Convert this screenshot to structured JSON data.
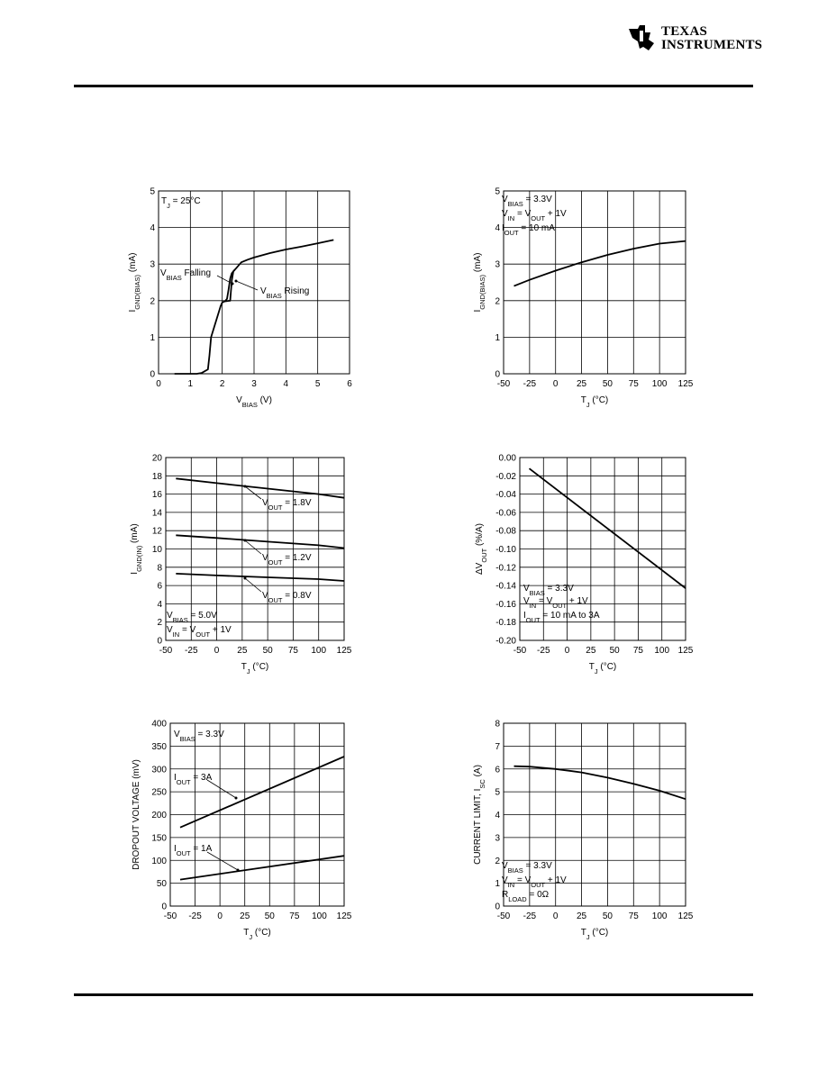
{
  "brand": {
    "line1": "Texas",
    "line2": "Instruments"
  },
  "chart_data": [
    {
      "type": "line",
      "xlabel": "V_BIAS (V)",
      "ylabel": "I_GND(BIAS) (mA)",
      "xlim": [
        0,
        6
      ],
      "ylim": [
        0,
        5
      ],
      "xticks": [
        0,
        1,
        2,
        3,
        4,
        5,
        6
      ],
      "yticks": [
        0,
        1,
        2,
        3,
        4,
        5
      ],
      "grid": true,
      "annotations": [
        "T_J = 25°C",
        "V_BIAS Falling",
        "V_BIAS Rising"
      ],
      "series": [
        {
          "x": [
            0.5,
            1.2,
            1.35,
            1.55,
            1.6,
            1.65,
            1.95,
            2.0,
            2.08,
            2.25,
            2.3,
            2.35,
            2.45,
            2.6,
            2.8,
            3.0,
            3.5,
            4.0,
            4.5,
            5.0,
            5.5
          ],
          "y": [
            0.0,
            0.0,
            0.02,
            0.12,
            0.5,
            1.0,
            1.85,
            1.95,
            1.98,
            2.0,
            2.55,
            2.8,
            2.9,
            3.05,
            3.12,
            3.18,
            3.3,
            3.4,
            3.48,
            3.57,
            3.66
          ]
        },
        {
          "x": [
            2.1,
            2.15,
            2.2,
            2.25,
            2.3,
            2.35,
            2.4
          ],
          "y": [
            2.0,
            2.05,
            2.3,
            2.6,
            2.75,
            2.8,
            2.85
          ]
        }
      ]
    },
    {
      "type": "line",
      "xlabel": "T_J (°C)",
      "ylabel": "I_GND(BIAS) (mA)",
      "xlim": [
        -50,
        125
      ],
      "ylim": [
        0,
        5
      ],
      "xticks": [
        -50,
        -25,
        0,
        25,
        50,
        75,
        100,
        125
      ],
      "yticks": [
        0,
        1,
        2,
        3,
        4,
        5
      ],
      "grid": true,
      "annotations": [
        "V_BIAS = 3.3V",
        "V_IN = V_OUT + 1V",
        "I_OUT = 10 mA"
      ],
      "series": [
        {
          "x": [
            -40,
            -25,
            0,
            25,
            50,
            75,
            100,
            125
          ],
          "y": [
            2.4,
            2.57,
            2.82,
            3.05,
            3.25,
            3.42,
            3.56,
            3.63
          ]
        }
      ]
    },
    {
      "type": "line",
      "xlabel": "T_J (°C)",
      "ylabel": "I_GND(IN) (mA)",
      "xlim": [
        -50,
        125
      ],
      "ylim": [
        0,
        20
      ],
      "xticks": [
        -50,
        -25,
        0,
        25,
        50,
        75,
        100,
        125
      ],
      "yticks": [
        0,
        2,
        4,
        6,
        8,
        10,
        12,
        14,
        16,
        18,
        20
      ],
      "grid": true,
      "annotations": [
        "V_BIAS = 5.0V",
        "V_IN = V_OUT + 1V"
      ],
      "series": [
        {
          "name": "V_OUT = 1.8V",
          "x": [
            -40,
            0,
            50,
            100,
            125
          ],
          "y": [
            17.7,
            17.2,
            16.6,
            16.0,
            15.6
          ]
        },
        {
          "name": "V_OUT = 1.2V",
          "x": [
            -40,
            0,
            50,
            100,
            125
          ],
          "y": [
            11.5,
            11.2,
            10.8,
            10.4,
            10.1
          ]
        },
        {
          "name": "V_OUT = 0.8V",
          "x": [
            -40,
            0,
            50,
            100,
            125
          ],
          "y": [
            7.3,
            7.1,
            6.9,
            6.7,
            6.5
          ]
        }
      ]
    },
    {
      "type": "line",
      "xlabel": "T_J (°C)",
      "ylabel": "ΔV_OUT (%/A)",
      "xlim": [
        -50,
        125
      ],
      "ylim": [
        -0.2,
        0.0
      ],
      "xticks": [
        -50,
        -25,
        0,
        25,
        50,
        75,
        100,
        125
      ],
      "yticks": [
        0.0,
        -0.02,
        -0.04,
        -0.06,
        -0.08,
        -0.1,
        -0.12,
        -0.14,
        -0.16,
        -0.18,
        -0.2
      ],
      "ytick_labels": [
        "0.00",
        "-0.02",
        "-0.04",
        "-0.06",
        "-0.08",
        "-0.10",
        "-0.12",
        "-0.14",
        "-0.16",
        "-0.18",
        "-0.20"
      ],
      "grid": true,
      "annotations": [
        "V_BIAS = 3.3V",
        "V_IN = V_OUT + 1V",
        "I_OUT = 10 mA to 3A"
      ],
      "series": [
        {
          "x": [
            -40,
            125
          ],
          "y": [
            -0.012,
            -0.143
          ]
        }
      ]
    },
    {
      "type": "line",
      "xlabel": "T_J (°C)",
      "ylabel": "DROPOUT VOLTAGE (mV)",
      "xlim": [
        -50,
        125
      ],
      "ylim": [
        0,
        400
      ],
      "xticks": [
        -50,
        -25,
        0,
        25,
        50,
        75,
        100,
        125
      ],
      "yticks": [
        0,
        50,
        100,
        150,
        200,
        250,
        300,
        350,
        400
      ],
      "grid": true,
      "annotations": [
        "V_BIAS = 3.3V"
      ],
      "series": [
        {
          "name": "I_OUT = 3A",
          "x": [
            -40,
            125
          ],
          "y": [
            172,
            327
          ]
        },
        {
          "name": "I_OUT = 1A",
          "x": [
            -40,
            125
          ],
          "y": [
            58,
            110
          ]
        }
      ]
    },
    {
      "type": "line",
      "xlabel": "T_J (°C)",
      "ylabel": "CURRENT LIMIT, I_SC (A)",
      "xlim": [
        -50,
        125
      ],
      "ylim": [
        0,
        8
      ],
      "xticks": [
        -50,
        -25,
        0,
        25,
        50,
        75,
        100,
        125
      ],
      "yticks": [
        0,
        1,
        2,
        3,
        4,
        5,
        6,
        7,
        8
      ],
      "grid": true,
      "annotations": [
        "V_BIAS = 3.3V",
        "V_IN = V_OUT + 1V",
        "R_LOAD = 0Ω"
      ],
      "series": [
        {
          "x": [
            -40,
            -25,
            0,
            25,
            50,
            75,
            100,
            125
          ],
          "y": [
            6.12,
            6.1,
            6.0,
            5.85,
            5.62,
            5.35,
            5.05,
            4.68
          ]
        }
      ]
    }
  ]
}
